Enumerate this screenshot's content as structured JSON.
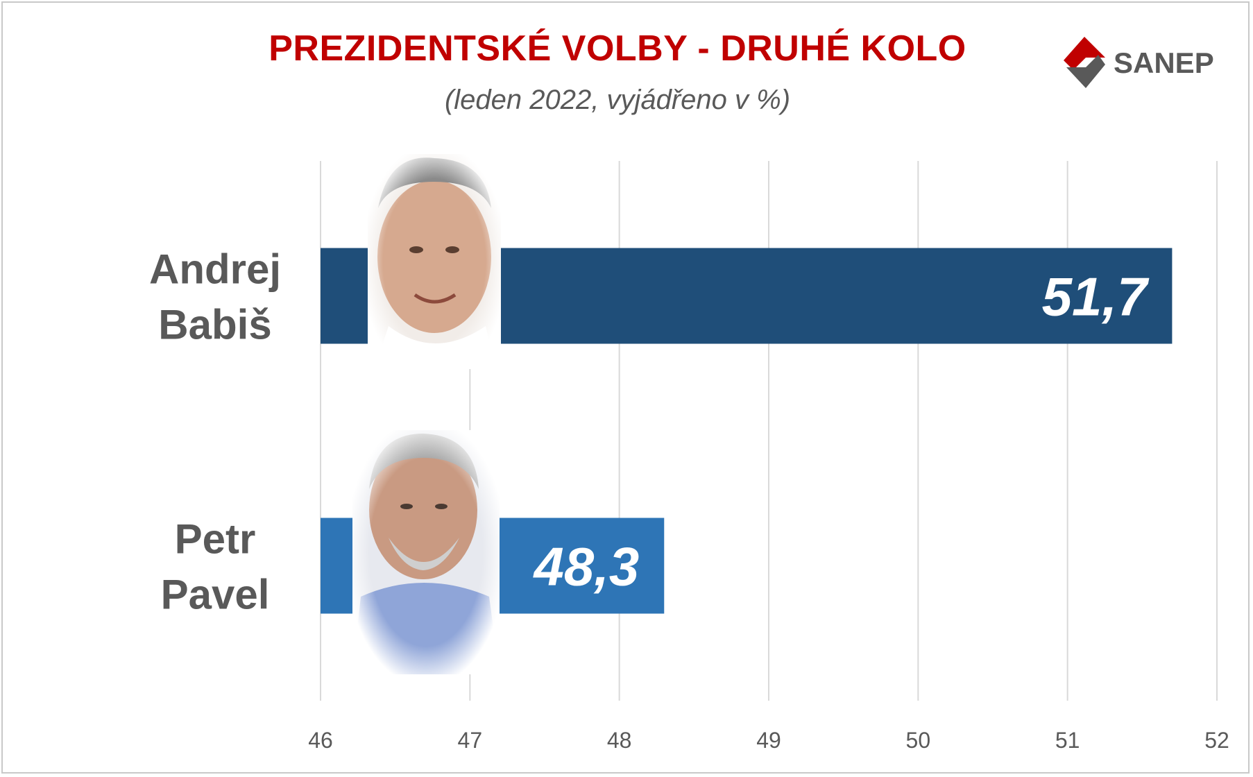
{
  "header": {
    "title": "PREZIDENTSKÉ VOLBY - DRUHÉ KOLO",
    "subtitle": "(leden 2022, vyjádřeno v %)",
    "logo_text": "SANEP"
  },
  "chart_data": {
    "type": "bar",
    "orientation": "horizontal",
    "categories": [
      "Andrej Babiš",
      "Petr Pavel"
    ],
    "category_lines": [
      [
        "Andrej",
        "Babiš"
      ],
      [
        "Petr",
        "Pavel"
      ]
    ],
    "values": [
      51.7,
      48.3
    ],
    "value_labels": [
      "51,7",
      "48,3"
    ],
    "bar_colors": [
      "#1f4e79",
      "#2e75b6"
    ],
    "xlim": [
      46,
      52
    ],
    "x_ticks": [
      46,
      47,
      48,
      49,
      50,
      51,
      52
    ],
    "title": "PREZIDENTSKÉ VOLBY - DRUHÉ KOLO",
    "subtitle": "(leden 2022, vyjádřeno v %)",
    "grid": "vertical",
    "legend": "none"
  },
  "colors": {
    "title": "#c00000",
    "text": "#595959",
    "grid": "#d9d9d9",
    "logo_red": "#c00000",
    "logo_gray": "#595959"
  },
  "icons": [
    "candidate-photo-babis",
    "candidate-photo-pavel",
    "sanep-logo-icon"
  ]
}
